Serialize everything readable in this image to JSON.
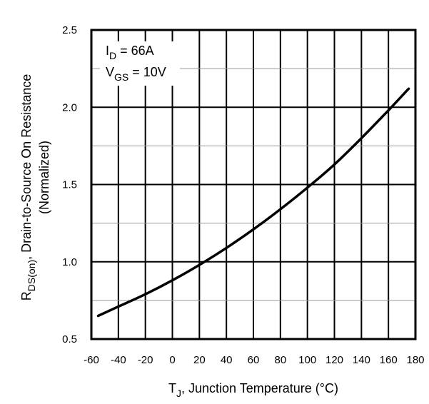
{
  "chart_data": {
    "type": "line",
    "xlabel": {
      "main": "T",
      "sub": "J",
      "rest": ", Junction Temperature (°C)"
    },
    "ylabel": {
      "main": "R",
      "sub": "DS(on)",
      "rest": ", Drain-to-Source On Resistance",
      "line2": "(Normalized)"
    },
    "xlim": [
      -60,
      180
    ],
    "ylim": [
      0.5,
      2.5
    ],
    "xticks": [
      "-60",
      "-40",
      "-20",
      "0",
      "20",
      "40",
      "60",
      "80",
      "100",
      "120",
      "140",
      "160",
      "180"
    ],
    "yticks": [
      "0.5",
      "1.0",
      "1.5",
      "2.0",
      "2.5"
    ],
    "grid": true,
    "annotations": [
      {
        "main": "I",
        "sub": "D",
        "rest": " = 66A"
      },
      {
        "main": "V",
        "sub": "GS",
        "rest": " = 10V"
      }
    ],
    "series": [
      {
        "x": [
          -55,
          -40,
          -20,
          0,
          20,
          40,
          60,
          80,
          100,
          120,
          140,
          160,
          175
        ],
        "y": [
          0.65,
          0.71,
          0.79,
          0.88,
          0.98,
          1.09,
          1.21,
          1.34,
          1.48,
          1.63,
          1.8,
          1.98,
          2.12
        ]
      }
    ]
  }
}
